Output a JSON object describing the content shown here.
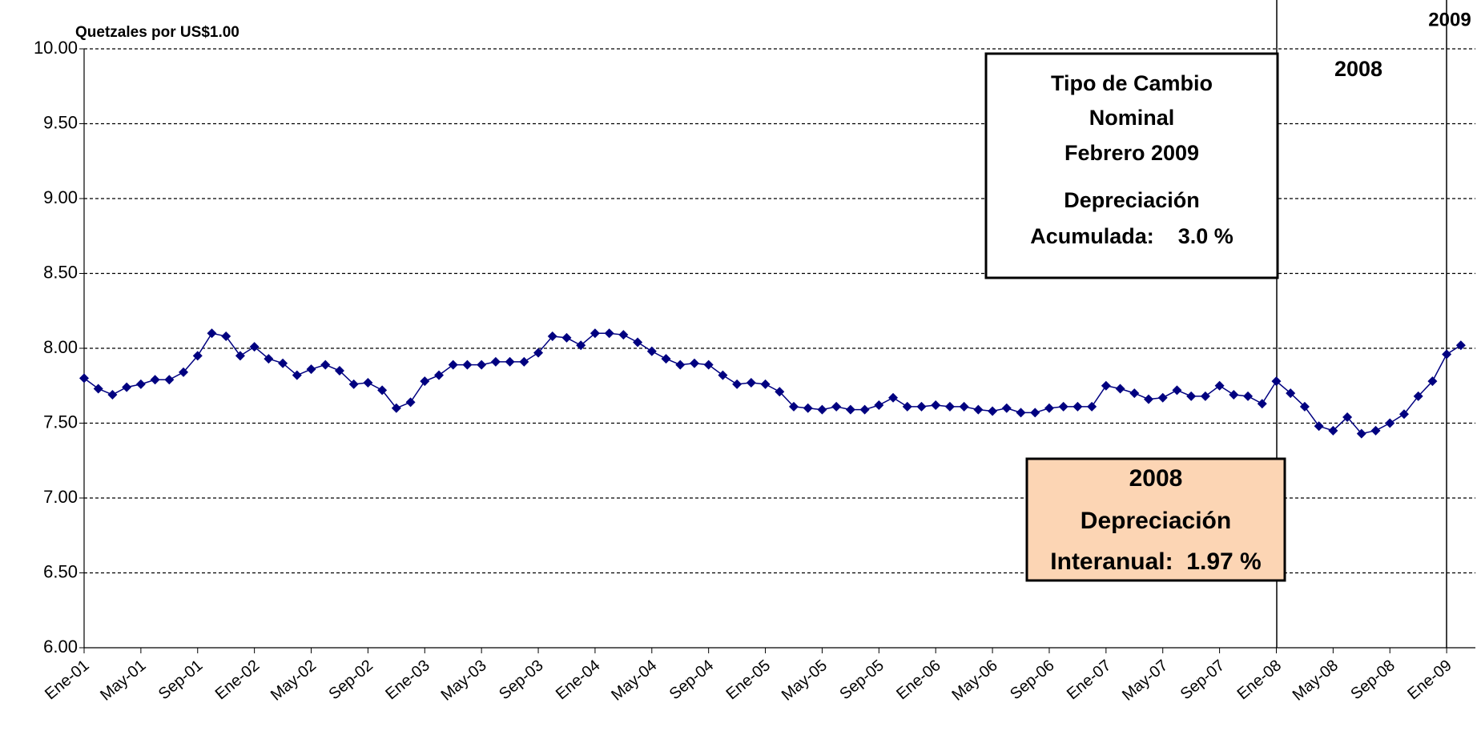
{
  "chart_data": {
    "type": "line",
    "y_axis_label": "Quetzales por US$1.00",
    "categories": [
      "Ene-01",
      null,
      null,
      null,
      "May-01",
      null,
      null,
      null,
      "Sep-01",
      null,
      null,
      null,
      "Ene-02",
      null,
      null,
      null,
      "May-02",
      null,
      null,
      null,
      "Sep-02",
      null,
      null,
      null,
      "Ene-03",
      null,
      null,
      null,
      "May-03",
      null,
      null,
      null,
      "Sep-03",
      null,
      null,
      null,
      "Ene-04",
      null,
      null,
      null,
      "May-04",
      null,
      null,
      null,
      "Sep-04",
      null,
      null,
      null,
      "Ene-05",
      null,
      null,
      null,
      "May-05",
      null,
      null,
      null,
      "Sep-05",
      null,
      null,
      null,
      "Ene-06",
      null,
      null,
      null,
      "May-06",
      null,
      null,
      null,
      "Sep-06",
      null,
      null,
      null,
      "Ene-07",
      null,
      null,
      null,
      "May-07",
      null,
      null,
      null,
      "Sep-07",
      null,
      null,
      null,
      "Ene-08",
      null,
      null,
      null,
      "May-08",
      null,
      null,
      null,
      "Sep-08",
      null,
      null,
      null,
      "Ene-09",
      null
    ],
    "series": [
      {
        "color": "#000080",
        "values": [
          7.8,
          7.73,
          7.69,
          7.74,
          7.76,
          7.79,
          7.79,
          7.84,
          7.95,
          8.1,
          8.08,
          7.95,
          8.01,
          7.93,
          7.9,
          7.82,
          7.86,
          7.89,
          7.85,
          7.76,
          7.77,
          7.72,
          7.6,
          7.64,
          7.78,
          7.82,
          7.89,
          7.89,
          7.89,
          7.91,
          7.91,
          7.91,
          7.97,
          8.08,
          8.07,
          8.02,
          8.1,
          8.1,
          8.09,
          8.04,
          7.98,
          7.93,
          7.89,
          7.9,
          7.89,
          7.82,
          7.76,
          7.77,
          7.76,
          7.71,
          7.61,
          7.6,
          7.59,
          7.61,
          7.59,
          7.59,
          7.62,
          7.67,
          7.61,
          7.61,
          7.62,
          7.61,
          7.61,
          7.59,
          7.58,
          7.6,
          7.57,
          7.57,
          7.6,
          7.61,
          7.61,
          7.61,
          7.75,
          7.73,
          7.7,
          7.66,
          7.67,
          7.72,
          7.68,
          7.68,
          7.75,
          7.69,
          7.68,
          7.63,
          7.78,
          7.7,
          7.61,
          7.48,
          7.45,
          7.54,
          7.43,
          7.45,
          7.5,
          7.56,
          7.68,
          7.78,
          7.96,
          8.02
        ]
      }
    ],
    "ylim": [
      6,
      10
    ],
    "yticks": [
      {
        "value": 6,
        "label": "6.00"
      },
      {
        "value": 6.5,
        "label": "6.50"
      },
      {
        "value": 7,
        "label": "7.00"
      },
      {
        "value": 7.5,
        "label": "7.50"
      },
      {
        "value": 8,
        "label": "8.00"
      },
      {
        "value": 8.5,
        "label": "8.50"
      },
      {
        "value": 9,
        "label": "9.00"
      },
      {
        "value": 9.5,
        "label": "9.50"
      },
      {
        "value": 10,
        "label": "10.00"
      }
    ],
    "grid": true,
    "year_labels": [
      "2008",
      "2009"
    ],
    "annotation_box_1": [
      "Tipo de Cambio",
      "Nominal",
      "Febrero 2009",
      "Depreciación",
      "Acumulada:    3.0 %"
    ],
    "annotation_box_2": [
      "2008",
      "Depreciación",
      "Interanual:  1.97 %"
    ]
  }
}
